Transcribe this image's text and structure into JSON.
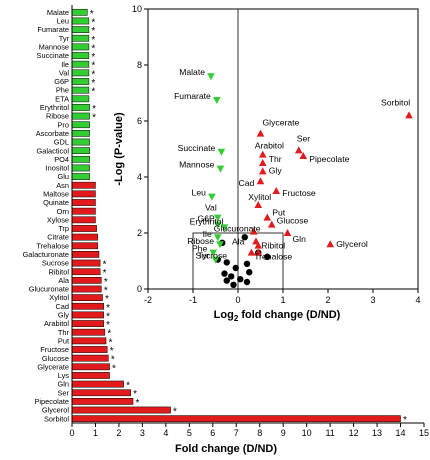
{
  "colors": {
    "up": "#e31a1c",
    "down": "#33cc33",
    "ns": "#000000",
    "significant_bar_marker": "#000000"
  },
  "chart_data": [
    {
      "type": "bar",
      "orientation": "horizontal",
      "xlabel": "Fold change (D/ND)",
      "xlim": [
        0,
        15
      ],
      "xticks": [
        "0",
        "1",
        "2",
        "3",
        "4",
        "5",
        "6",
        "7",
        "8",
        "9",
        "10",
        "11",
        "12",
        "13",
        "14",
        "15"
      ],
      "significance_marker": "*",
      "bars": [
        {
          "label": "Malate",
          "value": 0.65,
          "dir": "down",
          "sig": true
        },
        {
          "label": "Leu",
          "value": 0.72,
          "dir": "down",
          "sig": true
        },
        {
          "label": "Fumarate",
          "value": 0.72,
          "dir": "down",
          "sig": true
        },
        {
          "label": "Tyr",
          "value": 0.72,
          "dir": "down",
          "sig": true
        },
        {
          "label": "Mannose",
          "value": 0.72,
          "dir": "down",
          "sig": true
        },
        {
          "label": "Succinate",
          "value": 0.72,
          "dir": "down",
          "sig": true
        },
        {
          "label": "Ile",
          "value": 0.72,
          "dir": "down",
          "sig": true
        },
        {
          "label": "Val",
          "value": 0.72,
          "dir": "down",
          "sig": true
        },
        {
          "label": "G6P",
          "value": 0.72,
          "dir": "down",
          "sig": true
        },
        {
          "label": "Phe",
          "value": 0.72,
          "dir": "down",
          "sig": true
        },
        {
          "label": "ETA",
          "value": 0.72,
          "dir": "down",
          "sig": false
        },
        {
          "label": "Erythritol",
          "value": 0.75,
          "dir": "down",
          "sig": true
        },
        {
          "label": "Ribose",
          "value": 0.75,
          "dir": "down",
          "sig": true
        },
        {
          "label": "Pro",
          "value": 0.75,
          "dir": "down",
          "sig": false
        },
        {
          "label": "Ascorbate",
          "value": 0.75,
          "dir": "down",
          "sig": false
        },
        {
          "label": "GDL",
          "value": 0.75,
          "dir": "down",
          "sig": false
        },
        {
          "label": "Galacticol",
          "value": 0.75,
          "dir": "down",
          "sig": false
        },
        {
          "label": "PO4",
          "value": 0.75,
          "dir": "down",
          "sig": false
        },
        {
          "label": "Inositol",
          "value": 0.75,
          "dir": "down",
          "sig": false
        },
        {
          "label": "Glu",
          "value": 0.75,
          "dir": "down",
          "sig": false
        },
        {
          "label": "Asn",
          "value": 1.0,
          "dir": "up",
          "sig": false
        },
        {
          "label": "Maltose",
          "value": 1.0,
          "dir": "up",
          "sig": false
        },
        {
          "label": "Quinate",
          "value": 1.0,
          "dir": "up",
          "sig": false
        },
        {
          "label": "Orn",
          "value": 1.0,
          "dir": "up",
          "sig": false
        },
        {
          "label": "Xylose",
          "value": 1.0,
          "dir": "up",
          "sig": false
        },
        {
          "label": "Trp",
          "value": 1.05,
          "dir": "up",
          "sig": false
        },
        {
          "label": "Citrate",
          "value": 1.1,
          "dir": "up",
          "sig": false
        },
        {
          "label": "Trehalose",
          "value": 1.1,
          "dir": "up",
          "sig": false
        },
        {
          "label": "Galacturonate",
          "value": 1.15,
          "dir": "up",
          "sig": false
        },
        {
          "label": "Sucrose",
          "value": 1.2,
          "dir": "up",
          "sig": true
        },
        {
          "label": "Ribitol",
          "value": 1.2,
          "dir": "up",
          "sig": true
        },
        {
          "label": "Ala",
          "value": 1.25,
          "dir": "up",
          "sig": true
        },
        {
          "label": "Glucuronate",
          "value": 1.25,
          "dir": "up",
          "sig": true
        },
        {
          "label": "Xylitol",
          "value": 1.3,
          "dir": "up",
          "sig": true
        },
        {
          "label": "Cad",
          "value": 1.35,
          "dir": "up",
          "sig": true
        },
        {
          "label": "Gly",
          "value": 1.35,
          "dir": "up",
          "sig": true
        },
        {
          "label": "Arabitol",
          "value": 1.35,
          "dir": "up",
          "sig": true
        },
        {
          "label": "Thr",
          "value": 1.4,
          "dir": "up",
          "sig": true
        },
        {
          "label": "Put",
          "value": 1.45,
          "dir": "up",
          "sig": true
        },
        {
          "label": "Fructose",
          "value": 1.5,
          "dir": "up",
          "sig": true
        },
        {
          "label": "Glucose",
          "value": 1.55,
          "dir": "up",
          "sig": true
        },
        {
          "label": "Glycerate",
          "value": 1.6,
          "dir": "up",
          "sig": true
        },
        {
          "label": "Lys",
          "value": 1.6,
          "dir": "up",
          "sig": false
        },
        {
          "label": "Gln",
          "value": 2.2,
          "dir": "up",
          "sig": true
        },
        {
          "label": "Ser",
          "value": 2.5,
          "dir": "up",
          "sig": true
        },
        {
          "label": "Pipecolate",
          "value": 2.6,
          "dir": "up",
          "sig": true
        },
        {
          "label": "Glycerol",
          "value": 4.2,
          "dir": "up",
          "sig": true
        },
        {
          "label": "Sorbitol",
          "value": 14.0,
          "dir": "up",
          "sig": true
        }
      ]
    },
    {
      "type": "scatter",
      "xlabel_main": "Log",
      "xlabel_sub": "2",
      "xlabel_rest": " fold change (D/ND)",
      "ylabel": "-Log (P-value)",
      "xlim": [
        -2,
        4
      ],
      "ylim": [
        0,
        10
      ],
      "xticks": [
        "-2",
        "-1",
        "0",
        "1",
        "2",
        "3",
        "4"
      ],
      "yticks": [
        "0",
        "2",
        "4",
        "6",
        "8",
        "10"
      ],
      "box": {
        "x0": -1,
        "x1": 1,
        "y0": 0,
        "y1": 2
      },
      "points": [
        {
          "label": "Malate",
          "x": -0.6,
          "y": 7.6,
          "dir": "down"
        },
        {
          "label": "Fumarate",
          "x": -0.47,
          "y": 6.75,
          "dir": "down"
        },
        {
          "label": "Succinate",
          "x": -0.37,
          "y": 4.9,
          "dir": "down"
        },
        {
          "label": "Mannose",
          "x": -0.39,
          "y": 4.3,
          "dir": "down"
        },
        {
          "label": "Leu",
          "x": -0.58,
          "y": 3.3,
          "dir": "down"
        },
        {
          "label": "Val",
          "x": -0.45,
          "y": 2.55,
          "dir": "down"
        },
        {
          "label": "G6P",
          "x": -0.45,
          "y": 2.3,
          "dir": "down"
        },
        {
          "label": "Erythritol",
          "x": -0.3,
          "y": 2.2,
          "dir": "down"
        },
        {
          "label": "Ile",
          "x": -0.45,
          "y": 1.85,
          "dir": "down"
        },
        {
          "label": "Ribose",
          "x": -0.4,
          "y": 1.6,
          "dir": "down"
        },
        {
          "label": "Phe",
          "x": -0.55,
          "y": 1.3,
          "dir": "down"
        },
        {
          "label": "Tyr",
          "x": -0.5,
          "y": 1.05,
          "dir": "down"
        },
        {
          "label": "Glycerate",
          "x": 0.5,
          "y": 5.55,
          "dir": "up"
        },
        {
          "label": "Arabitol",
          "x": 0.55,
          "y": 4.8,
          "dir": "up"
        },
        {
          "label": "Thr",
          "x": 0.55,
          "y": 4.5,
          "dir": "up"
        },
        {
          "label": "Gly",
          "x": 0.55,
          "y": 4.2,
          "dir": "up"
        },
        {
          "label": "Cad",
          "x": 0.5,
          "y": 3.85,
          "dir": "up"
        },
        {
          "label": "Ser",
          "x": 1.35,
          "y": 4.95,
          "dir": "up"
        },
        {
          "label": "Pipecolate",
          "x": 1.45,
          "y": 4.75,
          "dir": "up"
        },
        {
          "label": "Fructose",
          "x": 0.85,
          "y": 3.5,
          "dir": "up"
        },
        {
          "label": "Xylitol",
          "x": 0.45,
          "y": 3.0,
          "dir": "up"
        },
        {
          "label": "Put",
          "x": 0.65,
          "y": 2.55,
          "dir": "up"
        },
        {
          "label": "Glucose",
          "x": 0.75,
          "y": 2.3,
          "dir": "up"
        },
        {
          "label": "Glucuronate",
          "x": 0.35,
          "y": 2.05,
          "dir": "up"
        },
        {
          "label": "Gln",
          "x": 1.1,
          "y": 2.0,
          "dir": "up"
        },
        {
          "label": "Ala",
          "x": 0.4,
          "y": 1.7,
          "dir": "up"
        },
        {
          "label": "Ribitol",
          "x": 0.45,
          "y": 1.55,
          "dir": "up"
        },
        {
          "label": "Sucrose",
          "x": 0.3,
          "y": 1.3,
          "dir": "up"
        },
        {
          "label": "Trehalose",
          "x": 0.45,
          "y": 1.3,
          "dir": "up"
        },
        {
          "label": "Glycerol",
          "x": 2.05,
          "y": 1.6,
          "dir": "up"
        },
        {
          "label": "Sorbitol",
          "x": 3.8,
          "y": 6.2,
          "dir": "up"
        }
      ],
      "ns_points": [
        {
          "x": -0.35,
          "y": 1.65
        },
        {
          "x": 0.15,
          "y": 1.85
        },
        {
          "x": -0.45,
          "y": 1.05
        },
        {
          "x": -0.25,
          "y": 0.95
        },
        {
          "x": 0.2,
          "y": 0.9
        },
        {
          "x": -0.05,
          "y": 0.75
        },
        {
          "x": -0.3,
          "y": 0.55
        },
        {
          "x": 0.25,
          "y": 0.6
        },
        {
          "x": -0.15,
          "y": 0.45
        },
        {
          "x": 0.05,
          "y": 0.35
        },
        {
          "x": -0.25,
          "y": 0.3
        },
        {
          "x": 0.2,
          "y": 0.25
        },
        {
          "x": 0.65,
          "y": 1.15
        },
        {
          "x": 0.45,
          "y": 1.3
        },
        {
          "x": -0.1,
          "y": 0.15
        }
      ]
    }
  ]
}
